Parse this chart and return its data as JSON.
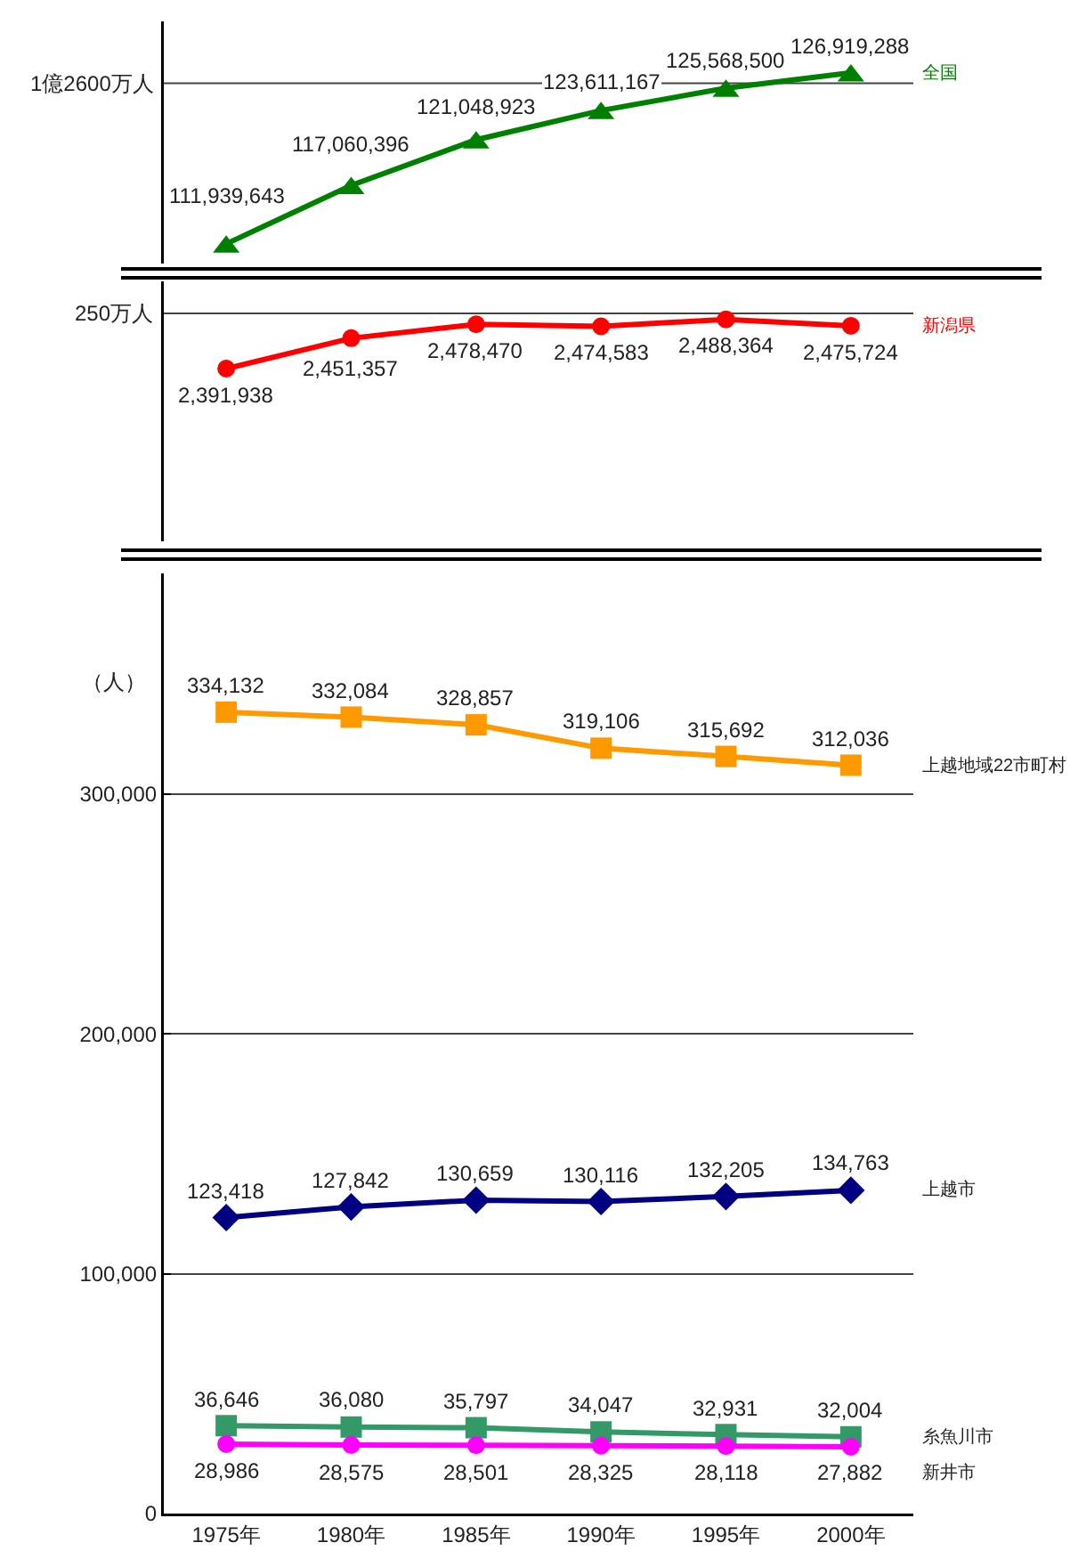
{
  "chart_data": [
    {
      "type": "line",
      "categories": [
        null,
        null,
        null,
        null,
        null,
        null
      ],
      "series": [
        {
          "name": "全国",
          "color": "#008000",
          "marker": "triangle",
          "values": [
            111939643,
            117060396,
            121048923,
            123611167,
            125568500,
            126919288
          ],
          "value_labels": [
            "111,939,643",
            "117,060,396",
            "121,048,923",
            "123,611,167",
            "125,568,500",
            "126,919,288"
          ]
        }
      ],
      "ref_lines": [
        {
          "axis": "y",
          "value": 126000000,
          "label": "1億2600万人"
        }
      ]
    },
    {
      "type": "line",
      "categories": [
        null,
        null,
        null,
        null,
        null,
        null
      ],
      "series": [
        {
          "name": "新潟県",
          "color": "#ff0000",
          "marker": "circle",
          "values": [
            2391938,
            2451357,
            2478470,
            2474583,
            2488364,
            2475724
          ],
          "value_labels": [
            "2,391,938",
            "2,451,357",
            "2,478,470",
            "2,474,583",
            "2,488,364",
            "2,475,724"
          ]
        }
      ],
      "ref_lines": [
        {
          "axis": "y",
          "value": 2500000,
          "label": "250万人"
        }
      ]
    },
    {
      "type": "line",
      "categories": [
        "1975年",
        "1980年",
        "1985年",
        "1990年",
        "1995年",
        "2000年"
      ],
      "ylabel": "（人）",
      "series": [
        {
          "name": "上越地域22市町村",
          "color": "#ff9900",
          "marker": "square",
          "values": [
            334132,
            332084,
            328857,
            319106,
            315692,
            312036
          ],
          "value_labels": [
            "334,132",
            "332,084",
            "328,857",
            "319,106",
            "315,692",
            "312,036"
          ]
        },
        {
          "name": "上越市",
          "color": "#000080",
          "marker": "diamond",
          "values": [
            123418,
            127842,
            130659,
            130116,
            132205,
            134763
          ],
          "value_labels": [
            "123,418",
            "127,842",
            "130,659",
            "130,116",
            "132,205",
            "134,763"
          ]
        },
        {
          "name": "糸魚川市",
          "color": "#339966",
          "marker": "square",
          "values": [
            36646,
            36080,
            35797,
            34047,
            32931,
            32004
          ],
          "value_labels": [
            "36,646",
            "36,080",
            "35,797",
            "34,047",
            "32,931",
            "32,004"
          ]
        },
        {
          "name": "新井市",
          "color": "#ff00ff",
          "marker": "circle",
          "values": [
            28986,
            28575,
            28501,
            28325,
            28118,
            27882
          ],
          "value_labels": [
            "28,986",
            "28,575",
            "28,501",
            "28,325",
            "28,118",
            "27,882"
          ]
        }
      ],
      "ylim": [
        0,
        392000
      ],
      "yticks": [
        0,
        {
          "value": 100000,
          "label": "100,000"
        },
        {
          "value": 200000,
          "label": "200,000"
        },
        {
          "value": 300000,
          "label": "300,000"
        }
      ],
      "grid": "y"
    }
  ]
}
